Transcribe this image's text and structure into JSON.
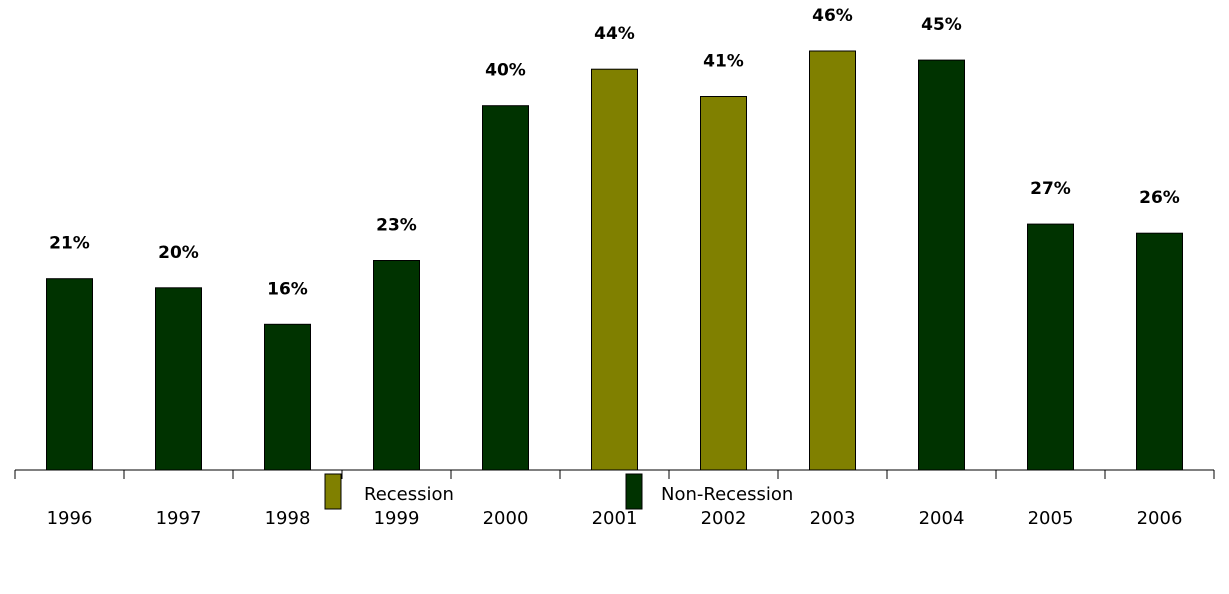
{
  "chart_data": {
    "type": "bar",
    "categories": [
      "1996",
      "1997",
      "1998",
      "1999",
      "2000",
      "2001",
      "2002",
      "2003",
      "2004",
      "2005",
      "2006"
    ],
    "values": [
      21,
      20,
      16,
      23,
      40,
      44,
      41,
      46,
      45,
      27,
      26
    ],
    "value_labels": [
      "21%",
      "20%",
      "16%",
      "23%",
      "40%",
      "44%",
      "41%",
      "46%",
      "45%",
      "27%",
      "26%"
    ],
    "groups": [
      "non-recession",
      "non-recession",
      "non-recession",
      "non-recession",
      "non-recession",
      "recession",
      "recession",
      "recession",
      "non-recession",
      "non-recession",
      "non-recession"
    ],
    "value_unit": "%",
    "ylim": [
      0,
      46
    ],
    "grid": false,
    "title": "",
    "xlabel": "",
    "ylabel": "",
    "legend": {
      "placement": "bottom-center",
      "entries": [
        {
          "key": "recession",
          "label": "Recession",
          "color": "#808000"
        },
        {
          "key": "non-recession",
          "label": "Non-Recession",
          "color": "#003300"
        }
      ]
    }
  }
}
